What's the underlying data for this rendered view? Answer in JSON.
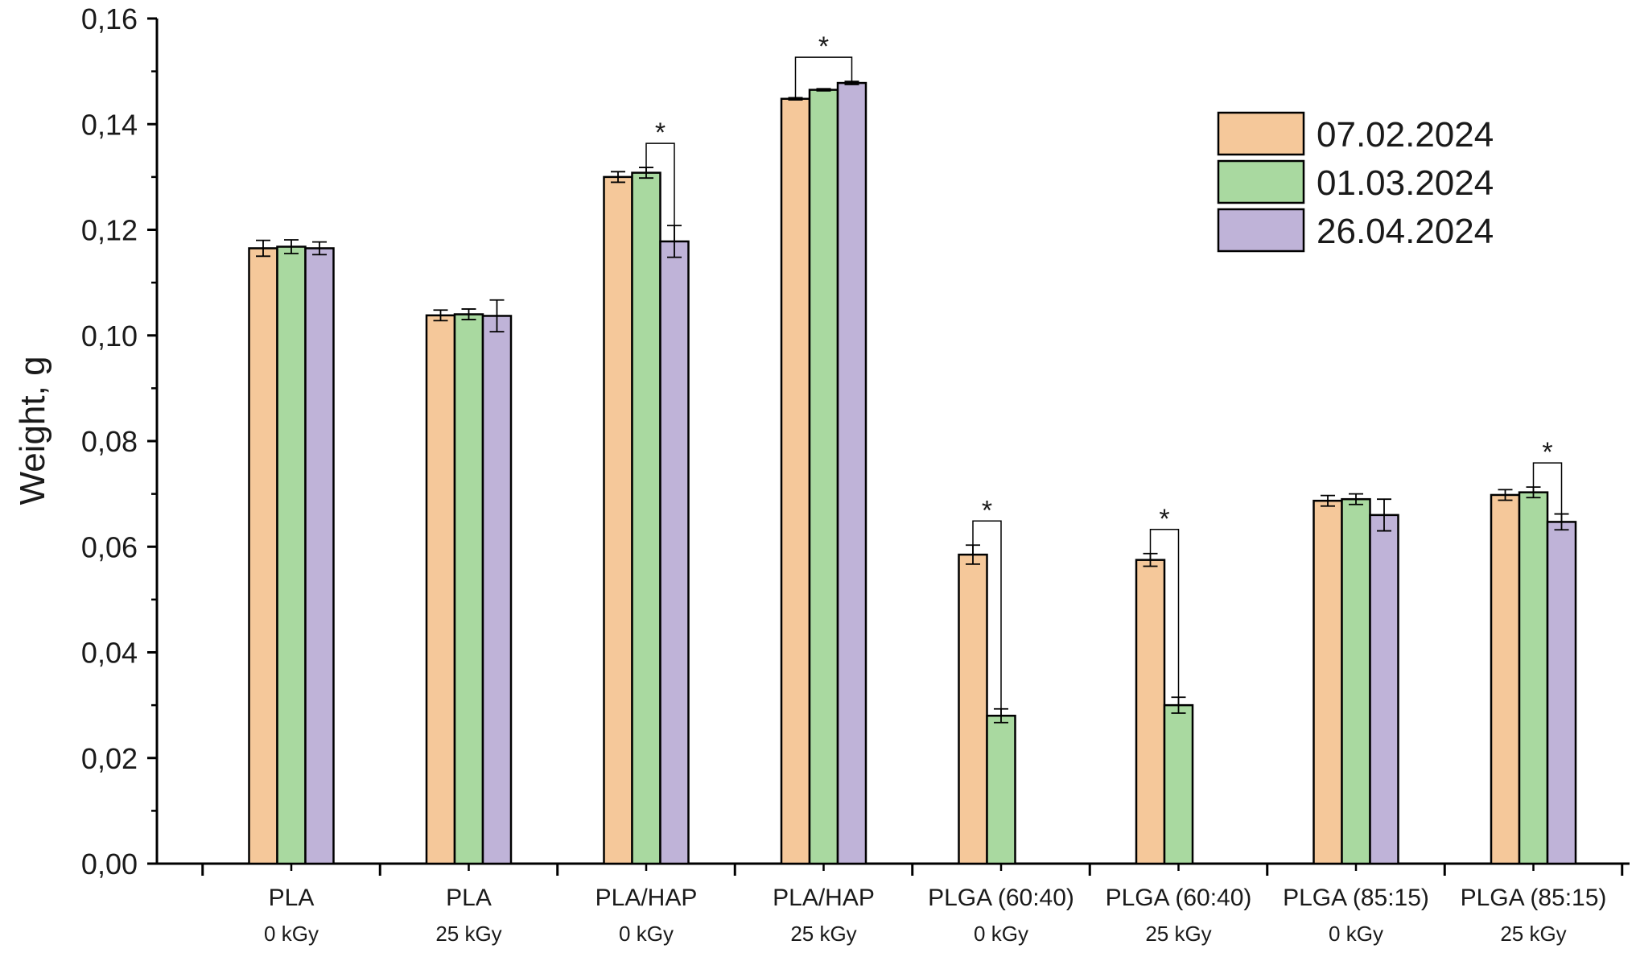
{
  "chart_data": {
    "type": "bar",
    "title": "",
    "xlabel": "",
    "ylabel": "Weight, g",
    "ylim": [
      0,
      0.16
    ],
    "yticks": [
      "0,00",
      "0,02",
      "0,04",
      "0,06",
      "0,08",
      "0,10",
      "0,12",
      "0,14",
      "0,16"
    ],
    "grid": false,
    "legend_position": "top-right",
    "categories": [
      {
        "line1": "PLA",
        "line2": "0 kGy"
      },
      {
        "line1": "PLA",
        "line2": "25 kGy"
      },
      {
        "line1": "PLA/HAP",
        "line2": "0 kGy"
      },
      {
        "line1": "PLA/HAP",
        "line2": "25 kGy"
      },
      {
        "line1": "PLGA (60:40)",
        "line2": "0 kGy"
      },
      {
        "line1": "PLGA (60:40)",
        "line2": "25 kGy"
      },
      {
        "line1": "PLGA (85:15)",
        "line2": "0 kGy"
      },
      {
        "line1": "PLGA (85:15)",
        "line2": "25 kGy"
      }
    ],
    "series": [
      {
        "name": "07.02.2024",
        "color": "#f5c89a",
        "values": [
          0.1165,
          0.1038,
          0.13,
          0.1448,
          0.0585,
          0.0575,
          0.0687,
          0.0698
        ],
        "errors": [
          0.0015,
          0.001,
          0.001,
          0.0002,
          0.0018,
          0.0012,
          0.001,
          0.001
        ]
      },
      {
        "name": "01.03.2024",
        "color": "#a9d9a0",
        "values": [
          0.1168,
          0.104,
          0.1308,
          0.1465,
          0.028,
          0.03,
          0.069,
          0.0703
        ],
        "errors": [
          0.0013,
          0.001,
          0.001,
          0.0002,
          0.0013,
          0.0015,
          0.001,
          0.001
        ]
      },
      {
        "name": "26.04.2024",
        "color": "#bfb3d8",
        "values": [
          0.1165,
          0.1037,
          0.1178,
          0.1478,
          null,
          null,
          0.066,
          0.0647
        ],
        "errors": [
          0.0012,
          0.003,
          0.003,
          0.0003,
          null,
          null,
          0.003,
          0.0015
        ]
      }
    ],
    "significance": [
      {
        "category": 2,
        "from_series": 1,
        "to_series": 2,
        "label": "*"
      },
      {
        "category": 3,
        "from_series": 0,
        "to_series": 2,
        "label": "*"
      },
      {
        "category": 4,
        "from_series": 0,
        "to_series": 1,
        "label": "*"
      },
      {
        "category": 5,
        "from_series": 0,
        "to_series": 1,
        "label": "*"
      },
      {
        "category": 7,
        "from_series": 1,
        "to_series": 2,
        "label": "*"
      }
    ]
  }
}
